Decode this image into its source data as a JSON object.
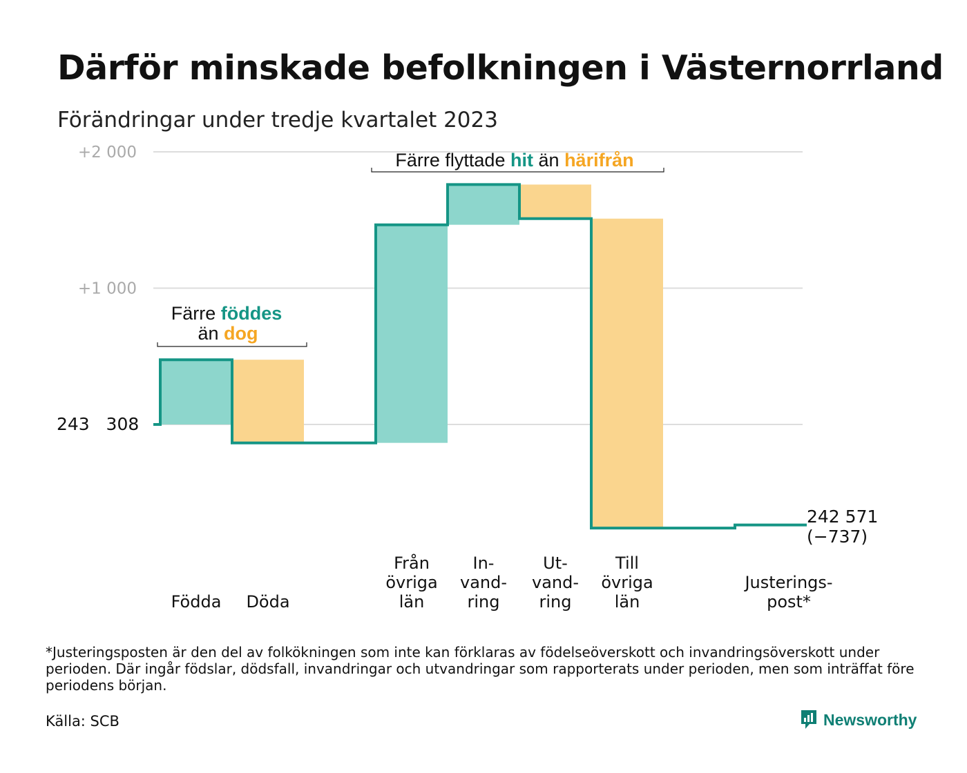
{
  "title": "Därför minskade befolkningen i Västernorrland",
  "subtitle": "Förändringar under tredje kvartalet 2023",
  "colors": {
    "inflow": "#8dd6cc",
    "outflow": "#fad58e",
    "line": "#159585",
    "hit_accent": "#159585",
    "away_accent": "#f5a623",
    "grid": "#dddddd",
    "tick_text": "#aaaaaa"
  },
  "annotations": {
    "birth_death": {
      "line1_prefix": "Färre",
      "line1_em": "föddes",
      "line2_prefix": "än",
      "line2_em": "dog"
    },
    "migration": {
      "prefix": "Färre flyttade",
      "em1": "hit",
      "middle": "än",
      "em2": "härifrån"
    }
  },
  "end_label": {
    "value": "242 571",
    "change": "(−737)"
  },
  "start_label": "243   308",
  "footnote": "*Justeringsposten är den del av folkökningen som inte kan förklaras av födelseöverskott och invandringsöverskott under perioden. Där ingår födslar, dödsfall, invandringar och utvandringar som rapporterats under perioden, men som inträffat före periodens början.",
  "source": "Källa: SCB",
  "logo": {
    "text": "Newsworthy",
    "icon": "newsworthy-logo-icon"
  },
  "chart_data": {
    "type": "waterfall",
    "start_value": 243308,
    "end_value": 242571,
    "total_change": -737,
    "y_ticks": [
      {
        "value": 0,
        "label": ""
      },
      {
        "value": 1000,
        "label": "+1   000"
      },
      {
        "value": 2000,
        "label": "+2   000"
      }
    ],
    "ylim": [
      -800,
      2000
    ],
    "grid": true,
    "steps": [
      {
        "label_lines": [
          "Födda"
        ],
        "change": 475,
        "kind": "in"
      },
      {
        "label_lines": [
          "Döda"
        ],
        "change": -610,
        "kind": "out"
      },
      {
        "label_lines": [],
        "change": 0,
        "kind": "gap"
      },
      {
        "label_lines": [
          "Från",
          "övriga",
          "län"
        ],
        "change": 1600,
        "kind": "in"
      },
      {
        "label_lines": [
          "In-",
          "vand-",
          "ring"
        ],
        "change": 295,
        "kind": "in"
      },
      {
        "label_lines": [
          "Ut-",
          "vand-",
          "ring"
        ],
        "change": -250,
        "kind": "out"
      },
      {
        "label_lines": [
          "Till",
          "övriga",
          "län"
        ],
        "change": -2270,
        "kind": "out"
      },
      {
        "label_lines": [],
        "change": 0,
        "kind": "gap"
      },
      {
        "label_lines": [
          "Justerings-",
          "post*"
        ],
        "change": 23,
        "kind": "adjust"
      }
    ]
  }
}
